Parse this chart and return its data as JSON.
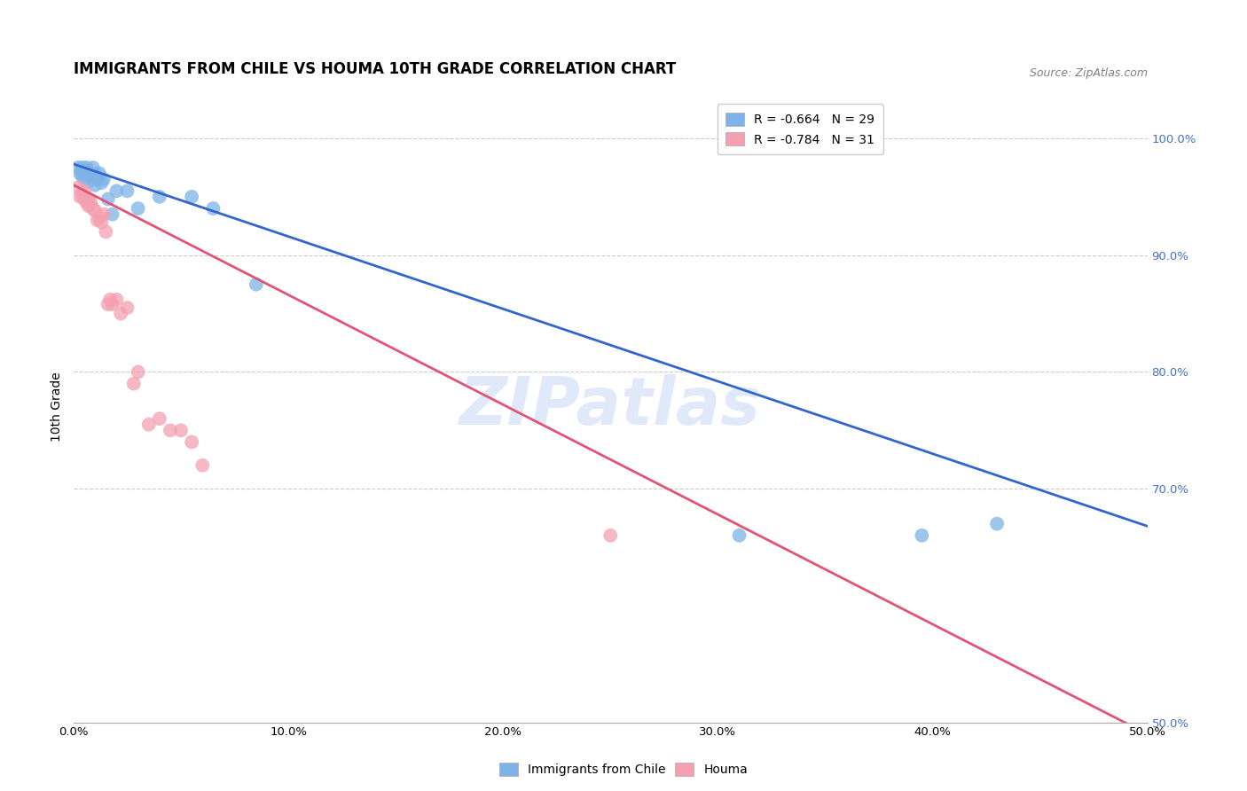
{
  "title": "IMMIGRANTS FROM CHILE VS HOUMA 10TH GRADE CORRELATION CHART",
  "source": "Source: ZipAtlas.com",
  "ylabel": "10th Grade",
  "ytick_values": [
    1.0,
    0.9,
    0.8,
    0.7,
    0.5
  ],
  "xlim": [
    0.0,
    0.5
  ],
  "ylim": [
    0.5,
    1.04
  ],
  "blue_color": "#7EB3E8",
  "pink_color": "#F4A0B0",
  "blue_line_color": "#3366CC",
  "pink_line_color": "#E05575",
  "legend_R_blue": "R = -0.664",
  "legend_N_blue": "N = 29",
  "legend_R_pink": "R = -0.784",
  "legend_N_pink": "N = 31",
  "watermark": "ZIPatlas",
  "blue_scatter_x": [
    0.002,
    0.003,
    0.004,
    0.004,
    0.005,
    0.005,
    0.006,
    0.007,
    0.007,
    0.008,
    0.009,
    0.01,
    0.01,
    0.011,
    0.012,
    0.013,
    0.014,
    0.016,
    0.018,
    0.02,
    0.025,
    0.03,
    0.04,
    0.055,
    0.065,
    0.085,
    0.31,
    0.395,
    0.43
  ],
  "blue_scatter_y": [
    0.975,
    0.97,
    0.975,
    0.968,
    0.972,
    0.965,
    0.975,
    0.97,
    0.963,
    0.968,
    0.975,
    0.97,
    0.96,
    0.965,
    0.97,
    0.962,
    0.965,
    0.948,
    0.935,
    0.955,
    0.955,
    0.94,
    0.95,
    0.95,
    0.94,
    0.875,
    0.66,
    0.66,
    0.67
  ],
  "pink_scatter_x": [
    0.002,
    0.003,
    0.004,
    0.005,
    0.005,
    0.006,
    0.007,
    0.007,
    0.008,
    0.009,
    0.01,
    0.011,
    0.012,
    0.013,
    0.014,
    0.015,
    0.016,
    0.017,
    0.018,
    0.02,
    0.022,
    0.025,
    0.028,
    0.03,
    0.035,
    0.04,
    0.045,
    0.05,
    0.055,
    0.06,
    0.25
  ],
  "pink_scatter_y": [
    0.958,
    0.95,
    0.952,
    0.955,
    0.948,
    0.945,
    0.948,
    0.942,
    0.945,
    0.94,
    0.938,
    0.93,
    0.932,
    0.928,
    0.935,
    0.92,
    0.858,
    0.862,
    0.858,
    0.862,
    0.85,
    0.855,
    0.79,
    0.8,
    0.755,
    0.76,
    0.75,
    0.75,
    0.74,
    0.72,
    0.66
  ],
  "blue_line_x": [
    0.0,
    0.5
  ],
  "blue_line_y": [
    0.978,
    0.668
  ],
  "pink_line_x": [
    0.0,
    0.5
  ],
  "pink_line_y": [
    0.96,
    0.49
  ],
  "yticks_right_color": "#4472C4",
  "grid_color": "#CCCCCC",
  "background_color": "#FFFFFF",
  "title_fontsize": 12,
  "axis_label_fontsize": 10,
  "tick_fontsize": 9.5,
  "legend_fontsize": 10,
  "source_fontsize": 9
}
